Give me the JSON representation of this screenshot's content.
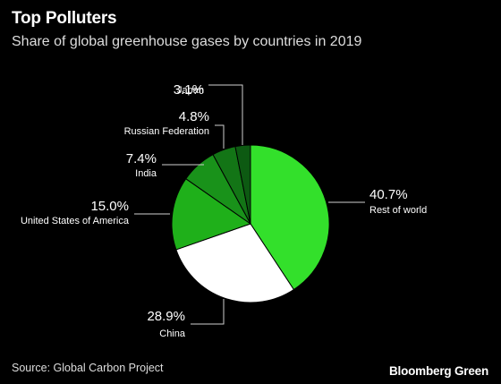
{
  "header": {
    "title": "Top Polluters",
    "subtitle": "Share of global greenhouse gases by countries in 2019"
  },
  "footer": {
    "source": "Source: Global Carbon Project",
    "brand": "Bloomberg Green"
  },
  "chart_data": {
    "type": "pie",
    "title": "Top Polluters",
    "subtitle": "Share of global greenhouse gases by countries in 2019",
    "unit": "%",
    "slices": [
      {
        "label": "Rest of world",
        "value": 40.7,
        "display": "40.7%",
        "color": "#33e02b"
      },
      {
        "label": "China",
        "value": 28.9,
        "display": "28.9%",
        "color": "#ffffff"
      },
      {
        "label": "United States of America",
        "value": 15.0,
        "display": "15.0%",
        "color": "#1fb01a"
      },
      {
        "label": "India",
        "value": 7.4,
        "display": "7.4%",
        "color": "#19921a"
      },
      {
        "label": "Russian Federation",
        "value": 4.8,
        "display": "4.8%",
        "color": "#137516"
      },
      {
        "label": "Japan",
        "value": 3.1,
        "display": "3.1%",
        "color": "#0d5a12"
      }
    ],
    "start_angle": "12 o'clock",
    "direction": "clockwise",
    "slice_separator_color": "#000000"
  }
}
